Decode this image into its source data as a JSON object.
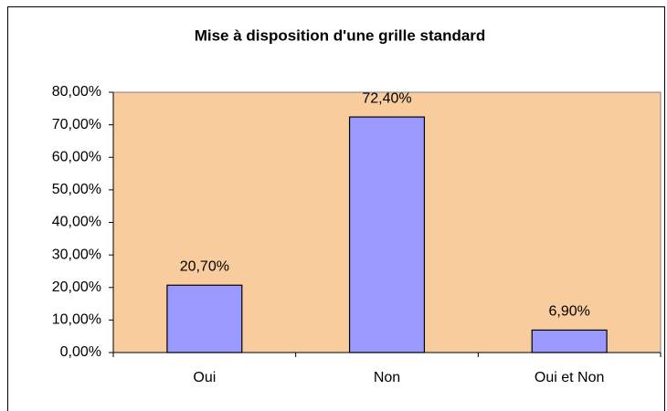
{
  "chart_data": {
    "type": "bar",
    "title": "Mise à disposition d'une grille standard",
    "categories": [
      "Oui",
      "Non",
      "Oui et Non"
    ],
    "values": [
      20.7,
      72.4,
      6.9
    ],
    "value_labels": [
      "20,70%",
      "72,40%",
      "6,90%"
    ],
    "color": "#9999ff",
    "plot_background": "#f9cc9e",
    "ylim": [
      0,
      80
    ],
    "yticks": [
      {
        "value": 0,
        "label": "0,00%"
      },
      {
        "value": 10,
        "label": "10,00%"
      },
      {
        "value": 20,
        "label": "20,00%"
      },
      {
        "value": 30,
        "label": "30,00%"
      },
      {
        "value": 40,
        "label": "40,00%"
      },
      {
        "value": 50,
        "label": "50,00%"
      },
      {
        "value": 60,
        "label": "60,00%"
      },
      {
        "value": 70,
        "label": "70,00%"
      },
      {
        "value": 80,
        "label": "80,00%"
      }
    ],
    "grid": false
  }
}
